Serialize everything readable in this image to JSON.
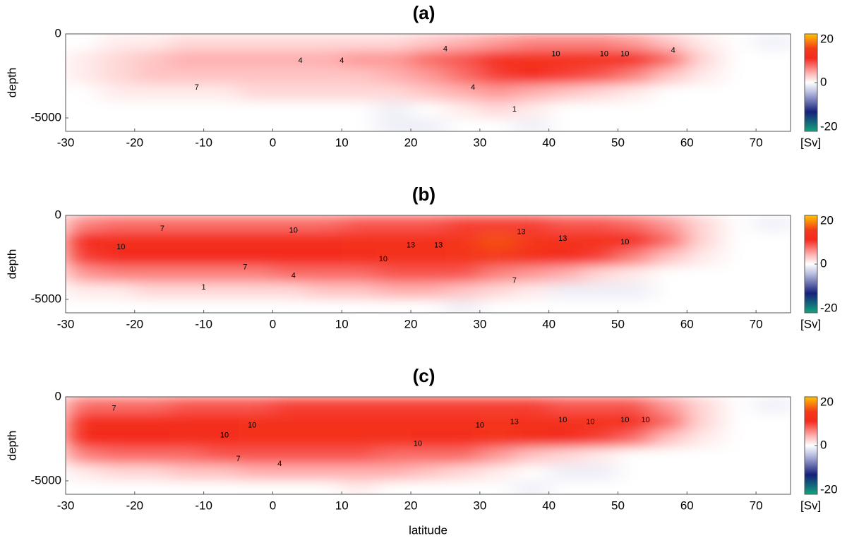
{
  "chart_data": [
    {
      "type": "heatmap",
      "title": "(a)",
      "ylabel": "depth",
      "colorbar_label": "[Sv]",
      "xlim": [
        -30,
        75
      ],
      "xticks": [
        -30,
        -20,
        -10,
        0,
        10,
        20,
        30,
        40,
        50,
        60,
        70
      ],
      "ylim": [
        -5800,
        0
      ],
      "yticks": [
        -5000,
        0
      ],
      "clim": [
        -20,
        20
      ],
      "cticks": [
        -20,
        0,
        20
      ],
      "colormap": [
        [
          -20,
          "#13a37c"
        ],
        [
          -12,
          "#15207a"
        ],
        [
          -4,
          "#b9bde0"
        ],
        [
          0,
          "#ffffff"
        ],
        [
          4,
          "#ffb0b0"
        ],
        [
          10,
          "#f42a1e"
        ],
        [
          14,
          "#f43a1a"
        ],
        [
          20,
          "#ffc400"
        ]
      ],
      "x": [
        -27.5,
        -22.5,
        -17.5,
        -12.5,
        -7.5,
        -2.5,
        2.5,
        7.5,
        12.5,
        17.5,
        22.5,
        27.5,
        32.5,
        37.5,
        42.5,
        47.5,
        52.5,
        57.5,
        62.5,
        67.5,
        72.5
      ],
      "y": [
        -500,
        -1500,
        -2500,
        -3500,
        -4500,
        -5500
      ],
      "z": [
        [
          0,
          1,
          1,
          2,
          2,
          2,
          2,
          2,
          2,
          2,
          3,
          4,
          5,
          6,
          6,
          6,
          5,
          3,
          1,
          0,
          -1
        ],
        [
          1,
          2,
          3,
          4,
          4,
          4,
          4,
          4,
          5,
          5,
          7,
          8,
          11,
          12,
          12,
          12,
          11,
          7,
          2,
          0,
          0
        ],
        [
          1,
          2,
          3,
          3,
          3,
          3,
          3,
          3,
          3,
          4,
          5,
          7,
          9,
          10,
          9,
          8,
          6,
          3,
          1,
          0,
          0
        ],
        [
          0,
          1,
          1,
          1,
          1,
          2,
          2,
          2,
          2,
          2,
          3,
          4,
          5,
          4,
          3,
          2,
          1,
          0,
          0,
          0,
          0
        ],
        [
          0,
          0,
          0,
          0,
          0,
          0,
          0,
          0,
          0,
          -1,
          0,
          1,
          2,
          1,
          0,
          0,
          0,
          0,
          0,
          0,
          0
        ],
        [
          0,
          0,
          0,
          0,
          0,
          0,
          0,
          0,
          0,
          -1,
          -1,
          0,
          0,
          -1,
          0,
          0,
          0,
          0,
          0,
          0,
          0
        ]
      ],
      "annotations": [
        {
          "text": "4",
          "x": 4,
          "y": -1600
        },
        {
          "text": "4",
          "x": 10,
          "y": -1600
        },
        {
          "text": "7",
          "x": -11,
          "y": -3200
        },
        {
          "text": "4",
          "x": 25,
          "y": -900
        },
        {
          "text": "10",
          "x": 41,
          "y": -1200
        },
        {
          "text": "10",
          "x": 48,
          "y": -1200
        },
        {
          "text": "10",
          "x": 51,
          "y": -1200
        },
        {
          "text": "4",
          "x": 29,
          "y": -3200
        },
        {
          "text": "1",
          "x": 35,
          "y": -4500
        },
        {
          "text": "4",
          "x": 58,
          "y": -1000
        }
      ]
    },
    {
      "type": "heatmap",
      "title": "(b)",
      "ylabel": "depth",
      "colorbar_label": "[Sv]",
      "xlim": [
        -30,
        75
      ],
      "xticks": [
        -30,
        -20,
        -10,
        0,
        10,
        20,
        30,
        40,
        50,
        60,
        70
      ],
      "ylim": [
        -5800,
        0
      ],
      "yticks": [
        -5000,
        0
      ],
      "clim": [
        -20,
        20
      ],
      "cticks": [
        -20,
        0,
        20
      ],
      "colormap": [
        [
          -20,
          "#13a37c"
        ],
        [
          -12,
          "#15207a"
        ],
        [
          -4,
          "#b9bde0"
        ],
        [
          0,
          "#ffffff"
        ],
        [
          4,
          "#ffb0b0"
        ],
        [
          10,
          "#f42a1e"
        ],
        [
          14,
          "#f43a1a"
        ],
        [
          20,
          "#ffc400"
        ]
      ],
      "x": [
        -27.5,
        -22.5,
        -17.5,
        -12.5,
        -7.5,
        -2.5,
        2.5,
        7.5,
        12.5,
        17.5,
        22.5,
        27.5,
        32.5,
        37.5,
        42.5,
        47.5,
        52.5,
        57.5,
        62.5,
        67.5,
        72.5
      ],
      "y": [
        -500,
        -1500,
        -2500,
        -3500,
        -4500,
        -5500
      ],
      "z": [
        [
          6,
          7,
          7,
          7,
          7,
          7,
          7,
          7,
          8,
          8,
          8,
          9,
          9,
          9,
          8,
          8,
          7,
          5,
          2,
          0,
          -1
        ],
        [
          10,
          11,
          11,
          11,
          11,
          11,
          11,
          11,
          12,
          12,
          12,
          13,
          15,
          13,
          12,
          12,
          10,
          7,
          2,
          0,
          0
        ],
        [
          9,
          10,
          10,
          10,
          10,
          10,
          10,
          10,
          11,
          12,
          12,
          13,
          14,
          12,
          10,
          9,
          6,
          3,
          1,
          0,
          0
        ],
        [
          5,
          6,
          6,
          6,
          6,
          6,
          7,
          7,
          7,
          8,
          8,
          8,
          6,
          5,
          4,
          2,
          1,
          0,
          0,
          0,
          0
        ],
        [
          1,
          1,
          2,
          2,
          2,
          2,
          2,
          3,
          3,
          4,
          4,
          3,
          2,
          1,
          -1,
          -1,
          -1,
          0,
          0,
          0,
          0
        ],
        [
          0,
          0,
          0,
          0,
          0,
          0,
          0,
          0,
          0,
          0,
          0,
          -1,
          0,
          0,
          0,
          0,
          0,
          0,
          0,
          0,
          0
        ]
      ],
      "annotations": [
        {
          "text": "7",
          "x": -16,
          "y": -800
        },
        {
          "text": "10",
          "x": -22,
          "y": -1900
        },
        {
          "text": "10",
          "x": 3,
          "y": -900
        },
        {
          "text": "13",
          "x": 20,
          "y": -1800
        },
        {
          "text": "13",
          "x": 24,
          "y": -1800
        },
        {
          "text": "10",
          "x": 16,
          "y": -2600
        },
        {
          "text": "13",
          "x": 36,
          "y": -1000
        },
        {
          "text": "13",
          "x": 42,
          "y": -1400
        },
        {
          "text": "10",
          "x": 51,
          "y": -1600
        },
        {
          "text": "7",
          "x": -4,
          "y": -3100
        },
        {
          "text": "4",
          "x": 3,
          "y": -3600
        },
        {
          "text": "1",
          "x": -10,
          "y": -4300
        },
        {
          "text": "7",
          "x": 35,
          "y": -3900
        }
      ]
    },
    {
      "type": "heatmap",
      "title": "(c)",
      "ylabel": "depth",
      "xlabel": "latitude",
      "colorbar_label": "[Sv]",
      "xlim": [
        -30,
        75
      ],
      "xticks": [
        -30,
        -20,
        -10,
        0,
        10,
        20,
        30,
        40,
        50,
        60,
        70
      ],
      "ylim": [
        -5800,
        0
      ],
      "yticks": [
        -5000,
        0
      ],
      "clim": [
        -20,
        20
      ],
      "cticks": [
        -20,
        0,
        20
      ],
      "colormap": [
        [
          -20,
          "#13a37c"
        ],
        [
          -12,
          "#15207a"
        ],
        [
          -4,
          "#b9bde0"
        ],
        [
          0,
          "#ffffff"
        ],
        [
          4,
          "#ffb0b0"
        ],
        [
          10,
          "#f42a1e"
        ],
        [
          14,
          "#f43a1a"
        ],
        [
          20,
          "#ffc400"
        ]
      ],
      "x": [
        -27.5,
        -22.5,
        -17.5,
        -12.5,
        -7.5,
        -2.5,
        2.5,
        7.5,
        12.5,
        17.5,
        22.5,
        27.5,
        32.5,
        37.5,
        42.5,
        47.5,
        52.5,
        57.5,
        62.5,
        67.5,
        72.5
      ],
      "y": [
        -500,
        -1500,
        -2500,
        -3500,
        -4500,
        -5500
      ],
      "z": [
        [
          7,
          7,
          7,
          8,
          8,
          8,
          9,
          9,
          9,
          9,
          9,
          9,
          9,
          9,
          8,
          8,
          8,
          5,
          2,
          0,
          -1
        ],
        [
          11,
          11,
          11,
          11,
          11,
          12,
          12,
          12,
          12,
          12,
          12,
          12,
          13,
          12,
          12,
          12,
          11,
          7,
          2,
          0,
          0
        ],
        [
          10,
          10,
          10,
          11,
          11,
          12,
          12,
          12,
          12,
          12,
          11,
          11,
          13,
          11,
          10,
          9,
          7,
          3,
          1,
          0,
          0
        ],
        [
          6,
          7,
          7,
          7,
          8,
          8,
          8,
          8,
          8,
          7,
          7,
          7,
          5,
          3,
          2,
          1,
          0,
          0,
          0,
          0,
          0
        ],
        [
          1,
          2,
          2,
          3,
          3,
          4,
          4,
          4,
          4,
          4,
          3,
          2,
          1,
          0,
          -1,
          -1,
          0,
          0,
          0,
          0,
          0
        ],
        [
          0,
          0,
          0,
          0,
          0,
          0,
          0,
          0,
          1,
          0,
          0,
          0,
          0,
          -1,
          0,
          0,
          0,
          0,
          0,
          0,
          0
        ]
      ],
      "annotations": [
        {
          "text": "7",
          "x": -23,
          "y": -700
        },
        {
          "text": "10",
          "x": -3,
          "y": -1700
        },
        {
          "text": "10",
          "x": -7,
          "y": -2300
        },
        {
          "text": "10",
          "x": 30,
          "y": -1700
        },
        {
          "text": "10",
          "x": 21,
          "y": -2800
        },
        {
          "text": "13",
          "x": 35,
          "y": -1500
        },
        {
          "text": "10",
          "x": 42,
          "y": -1400
        },
        {
          "text": "10",
          "x": 46,
          "y": -1500
        },
        {
          "text": "10",
          "x": 51,
          "y": -1400
        },
        {
          "text": "10",
          "x": 54,
          "y": -1400
        },
        {
          "text": "7",
          "x": -5,
          "y": -3700
        },
        {
          "text": "4",
          "x": 1,
          "y": -4000
        }
      ]
    }
  ]
}
